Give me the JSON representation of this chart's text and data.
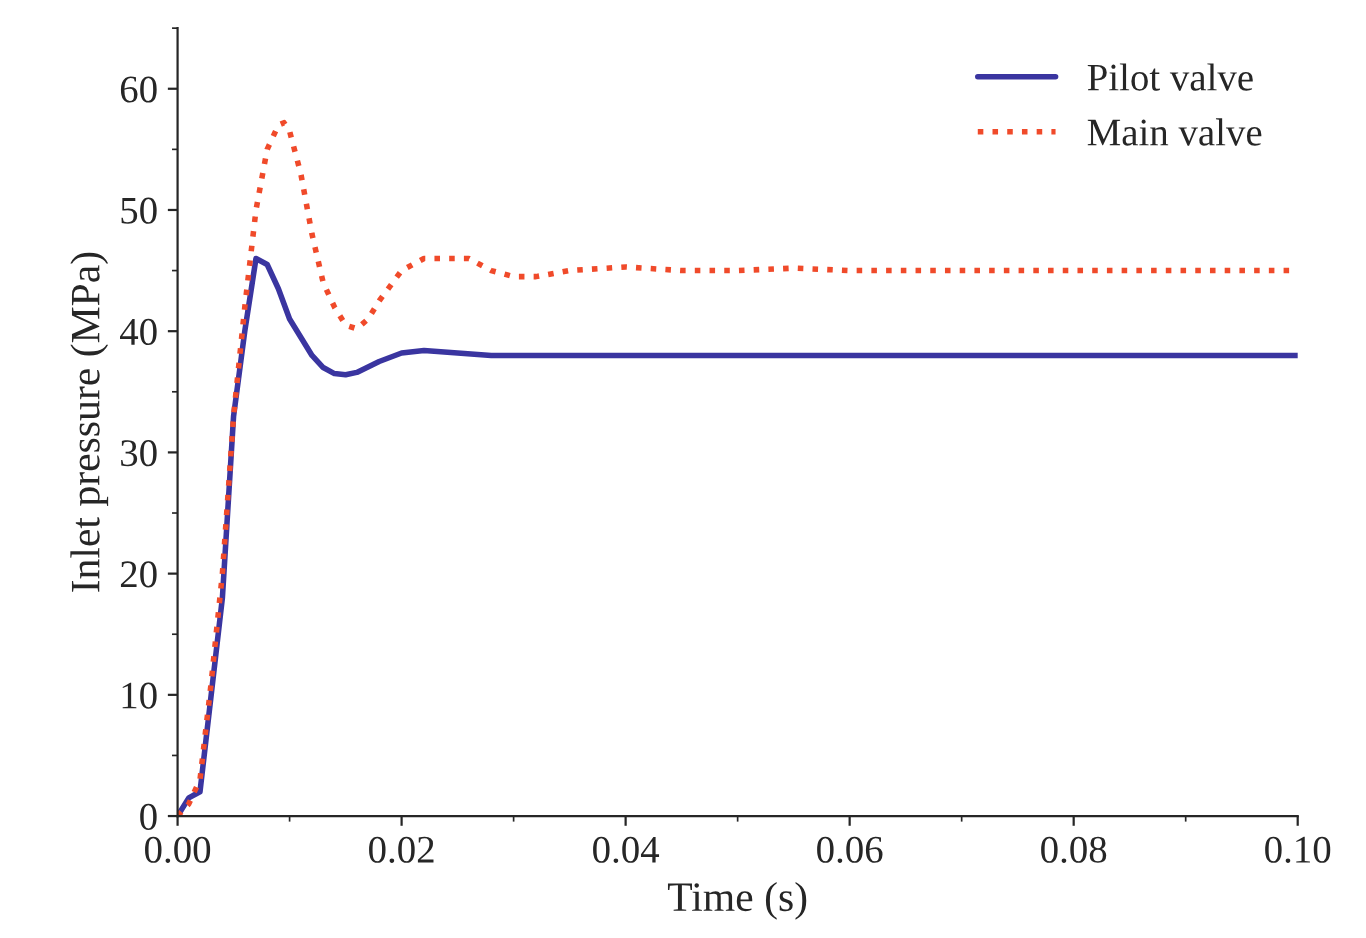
{
  "chart_data": {
    "type": "line",
    "xlabel": "Time (s)",
    "ylabel": "Inlet pressure (MPa)",
    "xlim": [
      0,
      0.1
    ],
    "xticks": [
      {
        "value": 0,
        "label": "0.00"
      },
      {
        "value": 0.02,
        "label": "0.02"
      },
      {
        "value": 0.04,
        "label": "0.04"
      },
      {
        "value": 0.06,
        "label": "0.06"
      },
      {
        "value": 0.08,
        "label": "0.08"
      },
      {
        "value": 0.1,
        "label": "0.10"
      }
    ],
    "ylim": [
      0,
      65
    ],
    "yticks": [
      0,
      10,
      20,
      30,
      40,
      50,
      60
    ],
    "legend": "top right",
    "grid": false,
    "series": [
      {
        "name": "Pilot valve",
        "color": "#3a35a0",
        "line_style": "solid",
        "x": [
          0,
          0.001,
          0.002,
          0.003,
          0.004,
          0.005,
          0.006,
          0.007,
          0.008,
          0.009,
          0.01,
          0.012,
          0.013,
          0.014,
          0.015,
          0.016,
          0.018,
          0.02,
          0.022,
          0.025,
          0.028,
          0.035,
          0.1
        ],
        "values": [
          0,
          1.5,
          2,
          10,
          18,
          33,
          40,
          46,
          45.5,
          43.5,
          41,
          38,
          37,
          36.5,
          36.4,
          36.6,
          37.5,
          38.2,
          38.4,
          38.2,
          38,
          38,
          38
        ]
      },
      {
        "name": "Main valve",
        "color": "#f04a2a",
        "line_style": "dotted",
        "x": [
          0,
          0.001,
          0.002,
          0.003,
          0.004,
          0.005,
          0.006,
          0.007,
          0.008,
          0.009,
          0.0095,
          0.01,
          0.011,
          0.012,
          0.013,
          0.014,
          0.015,
          0.016,
          0.017,
          0.018,
          0.02,
          0.022,
          0.024,
          0.026,
          0.028,
          0.03,
          0.032,
          0.035,
          0.04,
          0.045,
          0.05,
          0.055,
          0.06,
          0.1
        ],
        "values": [
          0,
          1,
          3,
          11,
          20,
          33,
          42,
          50,
          55,
          57,
          57.2,
          56.5,
          53,
          48,
          44,
          42,
          40.5,
          40.2,
          41,
          42.5,
          45,
          46,
          46,
          46,
          45,
          44.5,
          44.5,
          45,
          45.3,
          45,
          45,
          45.2,
          45,
          45
        ]
      }
    ]
  }
}
